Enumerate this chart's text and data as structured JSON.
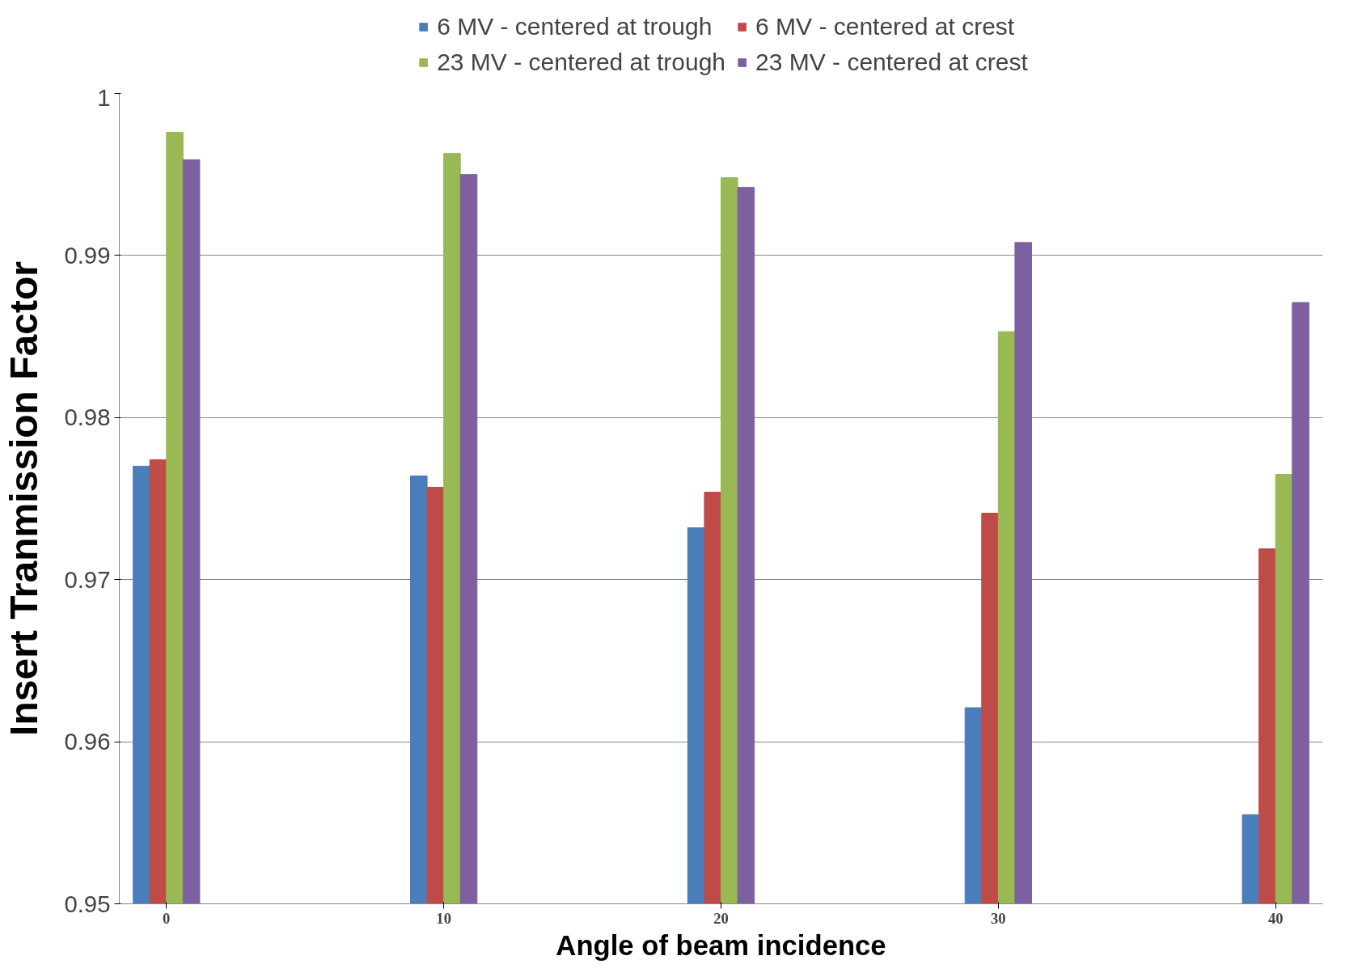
{
  "chart_data": {
    "type": "bar",
    "xlabel": "Angle of beam incidence",
    "ylabel": "Insert Tranmission Factor",
    "categories": [
      "0",
      "10",
      "20",
      "30",
      "40"
    ],
    "series": [
      {
        "name": "6 MV - centered at trough",
        "color": "#4a7ebb",
        "values": [
          0.977,
          0.9764,
          0.9732,
          0.9621,
          0.9555
        ]
      },
      {
        "name": "6 MV - centered at crest",
        "color": "#be4b48",
        "values": [
          0.9774,
          0.9757,
          0.9754,
          0.9741,
          0.9719
        ]
      },
      {
        "name": "23 MV - centered at trough",
        "color": "#98b954",
        "values": [
          0.9976,
          0.9963,
          0.9948,
          0.9853,
          0.9765
        ]
      },
      {
        "name": "23 MV - centered at crest",
        "color": "#7d60a0",
        "values": [
          0.9959,
          0.995,
          0.9942,
          0.9908,
          0.9871
        ]
      }
    ],
    "ylim": [
      0.95,
      1.0
    ],
    "yticks": [
      0.95,
      0.96,
      0.97,
      0.98,
      0.99,
      {
        "value": 1.0,
        "label": "1"
      }
    ],
    "grid": "y",
    "legend": "top"
  }
}
